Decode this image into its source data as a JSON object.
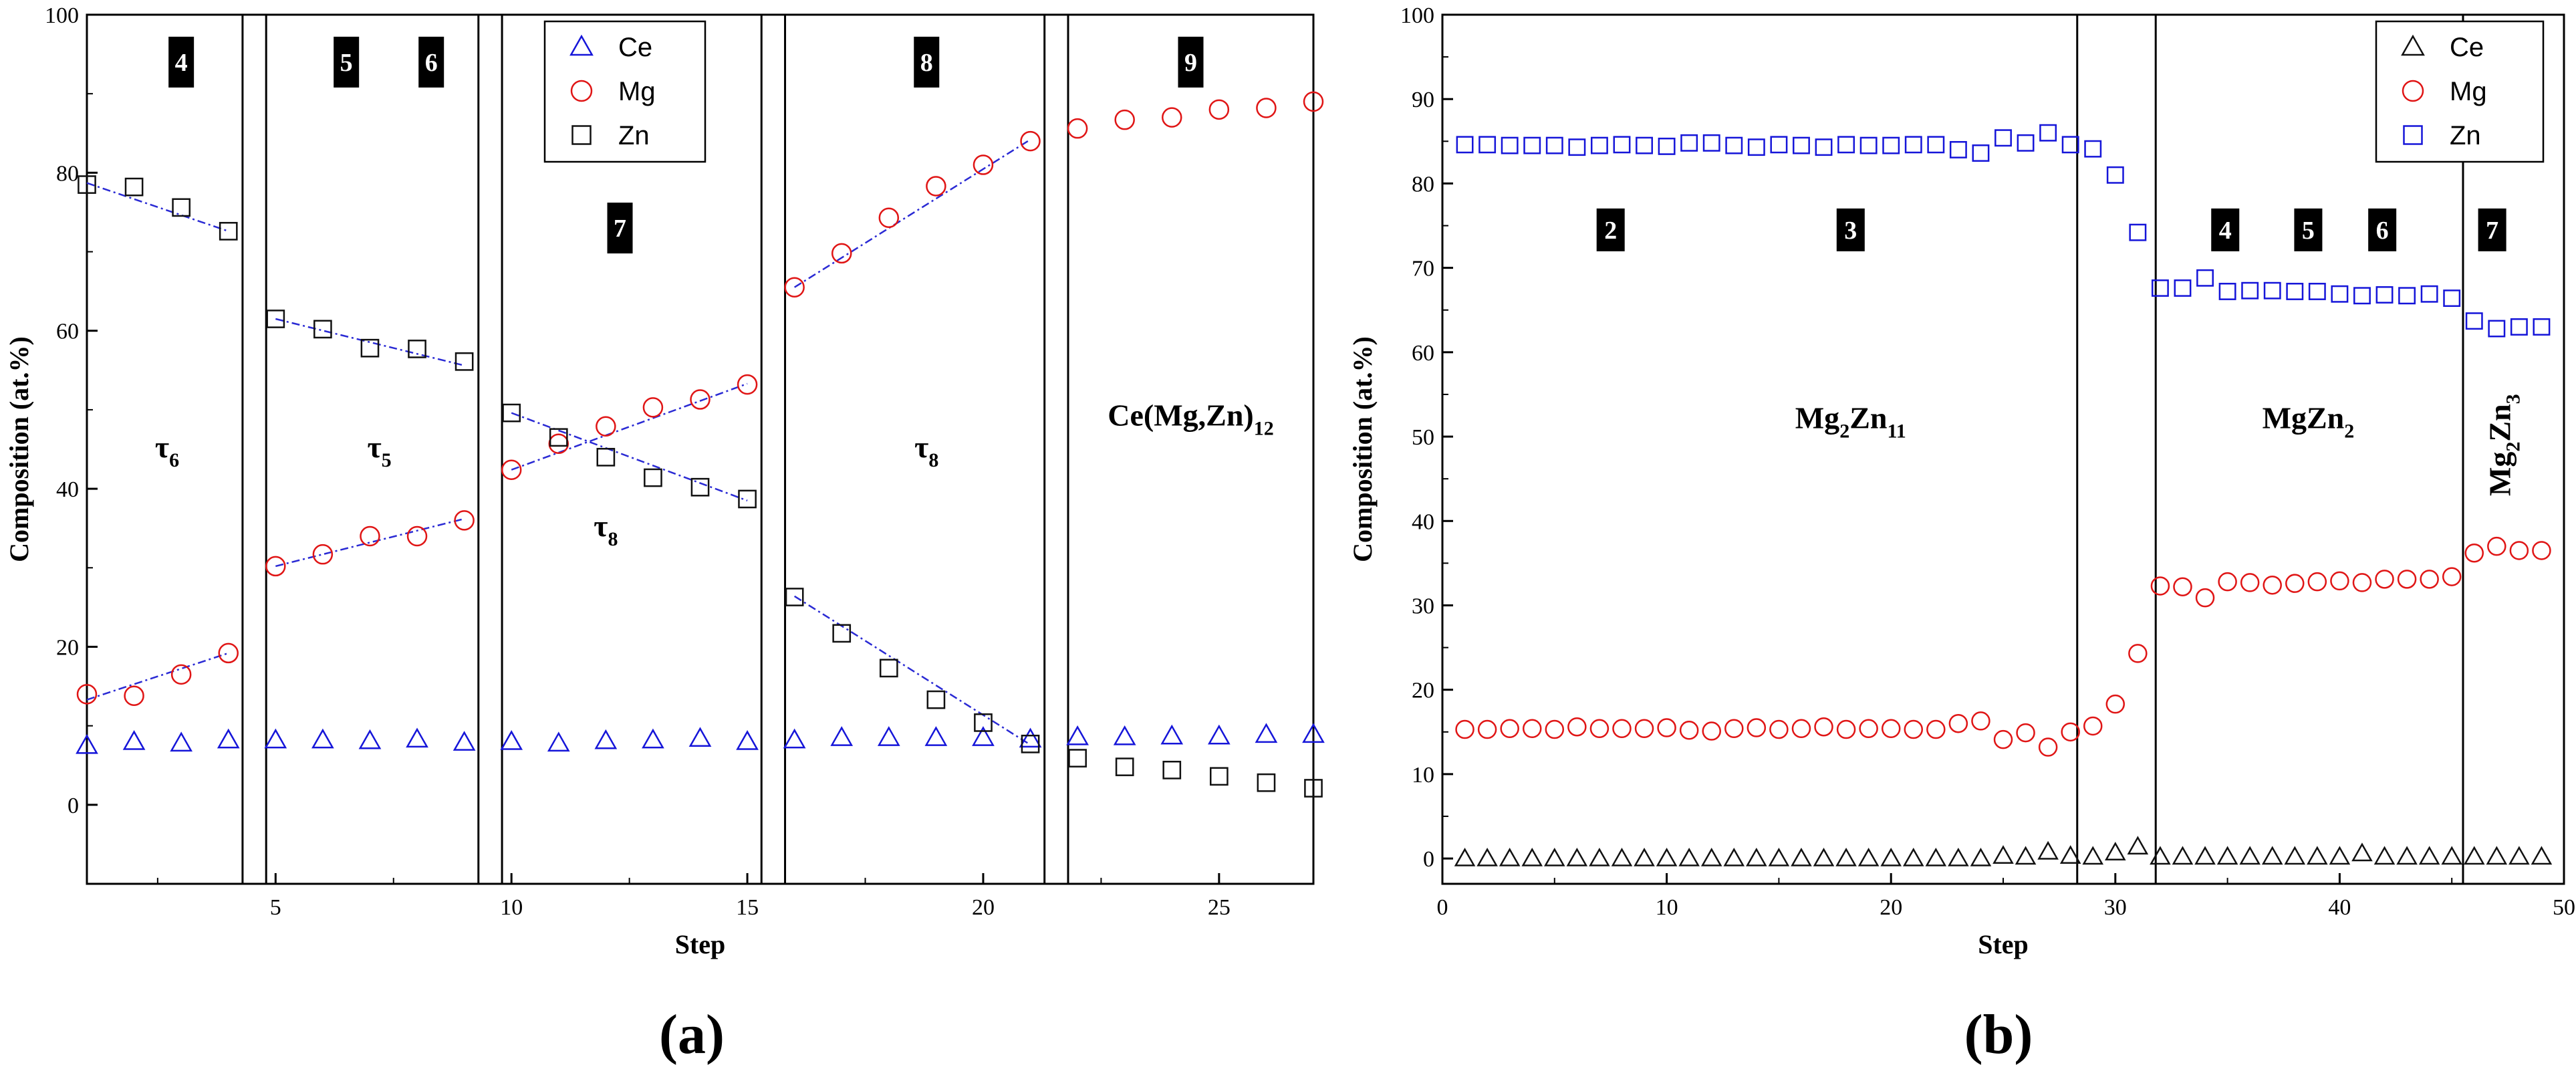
{
  "chart_data": [
    {
      "panel": "(a)",
      "type": "scatter",
      "xlabel": "Step",
      "ylabel": "Composition (at.%)",
      "xlim": [
        1,
        27
      ],
      "ylim": [
        -10,
        100
      ],
      "xticks": [
        5,
        10,
        15,
        20,
        25
      ],
      "yticks": [
        0,
        20,
        40,
        60,
        80,
        100
      ],
      "legend_position": "top-center",
      "boundaries": [
        4.3,
        4.8,
        9.3,
        9.8,
        15.3,
        15.8,
        21.3,
        21.8
      ],
      "series": [
        {
          "name": "Ce",
          "marker": "triangle",
          "color": "#1515d9",
          "x": [
            1,
            2,
            3,
            4,
            5,
            6,
            7,
            8,
            9,
            10,
            11,
            12,
            13,
            14,
            15,
            16,
            17,
            18,
            19,
            20,
            21,
            22,
            23,
            24,
            25,
            26,
            27
          ],
          "values": [
            7.5,
            8,
            7.8,
            8.2,
            8.2,
            8.2,
            8.1,
            8.3,
            7.9,
            8,
            7.8,
            8.1,
            8.2,
            8.4,
            8,
            8.2,
            8.5,
            8.5,
            8.5,
            8.5,
            8.3,
            8.6,
            8.6,
            8.7,
            8.7,
            8.9,
            8.9
          ]
        },
        {
          "name": "Mg",
          "marker": "circle",
          "color": "#e01515",
          "x": [
            1,
            2,
            3,
            4,
            5,
            6,
            7,
            8,
            9,
            10,
            11,
            12,
            13,
            14,
            15,
            16,
            17,
            18,
            19,
            20,
            21,
            22,
            23,
            24,
            25,
            26,
            27
          ],
          "values": [
            14,
            13.8,
            16.5,
            19.2,
            30.2,
            31.7,
            34,
            34,
            36,
            42.4,
            45.7,
            47.9,
            50.3,
            51.3,
            53.2,
            65.5,
            69.8,
            74.3,
            78.3,
            81,
            84,
            85.6,
            86.7,
            87,
            88,
            88.2,
            89
          ]
        },
        {
          "name": "Zn",
          "marker": "square",
          "color": "#111111",
          "x": [
            1,
            2,
            3,
            4,
            5,
            6,
            7,
            8,
            9,
            10,
            11,
            12,
            13,
            14,
            15,
            16,
            17,
            18,
            19,
            20,
            21,
            22,
            23,
            24,
            25,
            26,
            27
          ],
          "values": [
            78.5,
            78.2,
            75.6,
            72.6,
            61.5,
            60.2,
            57.8,
            57.7,
            56.1,
            49.6,
            46.5,
            44,
            41.4,
            40.2,
            38.7,
            26.3,
            21.7,
            17.3,
            13.3,
            10.4,
            7.7,
            5.9,
            4.8,
            4.4,
            3.6,
            2.8,
            2.1
          ]
        }
      ],
      "trendlines": [
        {
          "from": [
            1,
            13.3
          ],
          "to": [
            4,
            19.2
          ]
        },
        {
          "from": [
            1,
            78.7
          ],
          "to": [
            4,
            72.6
          ]
        },
        {
          "from": [
            5,
            30.2
          ],
          "to": [
            9,
            36.2
          ]
        },
        {
          "from": [
            5,
            61.5
          ],
          "to": [
            9,
            55.6
          ]
        },
        {
          "from": [
            10,
            42.4
          ],
          "to": [
            15,
            53.3
          ]
        },
        {
          "from": [
            10,
            49.6
          ],
          "to": [
            15,
            38.5
          ]
        },
        {
          "from": [
            16,
            65.5
          ],
          "to": [
            21,
            84.2
          ]
        },
        {
          "from": [
            16,
            26.4
          ],
          "to": [
            21,
            7.6
          ]
        }
      ],
      "region_labels": [
        {
          "text": "4",
          "x": 3.0,
          "y": 94
        },
        {
          "text": "5",
          "x": 6.5,
          "y": 94
        },
        {
          "text": "6",
          "x": 8.3,
          "y": 94
        },
        {
          "text": "7",
          "x": 12.3,
          "y": 73
        },
        {
          "text": "8",
          "x": 18.8,
          "y": 94
        },
        {
          "text": "9",
          "x": 24.4,
          "y": 94
        }
      ],
      "phase_labels": [
        {
          "main": "τ",
          "sub": "6",
          "x": 2.7,
          "y": 44
        },
        {
          "main": "τ",
          "sub": "5",
          "x": 7.2,
          "y": 44
        },
        {
          "main": "τ",
          "sub": "8",
          "x": 12.0,
          "y": 34
        },
        {
          "main": "τ",
          "sub": "8",
          "x": 18.8,
          "y": 44
        },
        {
          "main": "Ce(Mg,Zn)",
          "sub": "12",
          "x": 24.4,
          "y": 48
        }
      ]
    },
    {
      "panel": "(b)",
      "type": "scatter",
      "xlabel": "Step",
      "ylabel": "Composition (at.%)",
      "xlim": [
        0,
        50
      ],
      "ylim": [
        -3,
        100
      ],
      "xticks": [
        0,
        10,
        20,
        30,
        40,
        50
      ],
      "yticks": [
        0,
        10,
        20,
        30,
        40,
        50,
        60,
        70,
        80,
        90,
        100
      ],
      "legend_position": "top-right",
      "boundaries": [
        28.3,
        31.8,
        45.5
      ],
      "series": [
        {
          "name": "Ce",
          "marker": "triangle",
          "color": "#111111",
          "x": [
            1,
            2,
            3,
            4,
            5,
            6,
            7,
            8,
            9,
            10,
            11,
            12,
            13,
            14,
            15,
            16,
            17,
            18,
            19,
            20,
            21,
            22,
            23,
            24,
            25,
            26,
            27,
            28,
            29,
            30,
            31,
            32,
            33,
            34,
            35,
            36,
            37,
            38,
            39,
            40,
            41,
            42,
            43,
            44,
            45,
            46,
            47,
            48,
            49
          ],
          "values": [
            0,
            0,
            0,
            0,
            0,
            0,
            0,
            0,
            0,
            0,
            0,
            0,
            0,
            0,
            0,
            0,
            0,
            0,
            0,
            0,
            0,
            0,
            0,
            0,
            0.3,
            0.2,
            0.8,
            0.3,
            0.2,
            0.7,
            1.4,
            0.2,
            0.2,
            0.2,
            0.2,
            0.2,
            0.2,
            0.2,
            0.2,
            0.2,
            0.6,
            0.2,
            0.2,
            0.2,
            0.2,
            0.2,
            0.2,
            0.2,
            0.2
          ]
        },
        {
          "name": "Mg",
          "marker": "circle",
          "color": "#e01515",
          "x": [
            1,
            2,
            3,
            4,
            5,
            6,
            7,
            8,
            9,
            10,
            11,
            12,
            13,
            14,
            15,
            16,
            17,
            18,
            19,
            20,
            21,
            22,
            23,
            24,
            25,
            26,
            27,
            28,
            29,
            30,
            31,
            32,
            33,
            34,
            35,
            36,
            37,
            38,
            39,
            40,
            41,
            42,
            43,
            44,
            45,
            46,
            47,
            48,
            49
          ],
          "values": [
            15.3,
            15.3,
            15.4,
            15.4,
            15.3,
            15.6,
            15.4,
            15.4,
            15.4,
            15.5,
            15.2,
            15.1,
            15.4,
            15.5,
            15.3,
            15.4,
            15.6,
            15.3,
            15.4,
            15.4,
            15.3,
            15.3,
            16,
            16.3,
            14.1,
            14.9,
            13.2,
            15,
            15.7,
            18.3,
            24.3,
            32.3,
            32.2,
            30.9,
            32.8,
            32.7,
            32.4,
            32.6,
            32.8,
            32.9,
            32.7,
            33.1,
            33.1,
            33.1,
            33.4,
            36.2,
            37,
            36.5,
            36.5
          ]
        },
        {
          "name": "Zn",
          "marker": "square",
          "color": "#1515d9",
          "x": [
            1,
            2,
            3,
            4,
            5,
            6,
            7,
            8,
            9,
            10,
            11,
            12,
            13,
            14,
            15,
            16,
            17,
            18,
            19,
            20,
            21,
            22,
            23,
            24,
            25,
            26,
            27,
            28,
            29,
            30,
            31,
            32,
            33,
            34,
            35,
            36,
            37,
            38,
            39,
            40,
            41,
            42,
            43,
            44,
            45,
            46,
            47,
            48,
            49
          ],
          "values": [
            84.6,
            84.6,
            84.5,
            84.5,
            84.5,
            84.3,
            84.5,
            84.6,
            84.5,
            84.4,
            84.8,
            84.8,
            84.5,
            84.3,
            84.6,
            84.5,
            84.3,
            84.6,
            84.5,
            84.5,
            84.6,
            84.6,
            84,
            83.6,
            85.4,
            84.8,
            86,
            84.6,
            84.1,
            81,
            74.2,
            67.6,
            67.6,
            68.8,
            67.2,
            67.3,
            67.3,
            67.2,
            67.2,
            66.9,
            66.7,
            66.8,
            66.7,
            66.9,
            66.4,
            63.7,
            62.8,
            63,
            63
          ]
        }
      ],
      "region_labels": [
        {
          "text": "2",
          "x": 7.5,
          "y": 74.5
        },
        {
          "text": "3",
          "x": 18.2,
          "y": 74.5
        },
        {
          "text": "4",
          "x": 34.9,
          "y": 74.5
        },
        {
          "text": "5",
          "x": 38.6,
          "y": 74.5
        },
        {
          "text": "6",
          "x": 41.9,
          "y": 74.5
        },
        {
          "text": "7",
          "x": 46.8,
          "y": 74.5
        }
      ],
      "phase_labels": [
        {
          "main": "Mg",
          "sub": "2",
          "main2": "Zn",
          "sub2": "11",
          "x": 18.2,
          "y": 51
        },
        {
          "main": "MgZn",
          "sub": "2",
          "x": 38.6,
          "y": 51
        },
        {
          "main": "Mg",
          "sub": "2",
          "main2": "Zn",
          "sub2": "3",
          "x": 47.6,
          "y": 49,
          "rotated": true
        }
      ]
    }
  ]
}
